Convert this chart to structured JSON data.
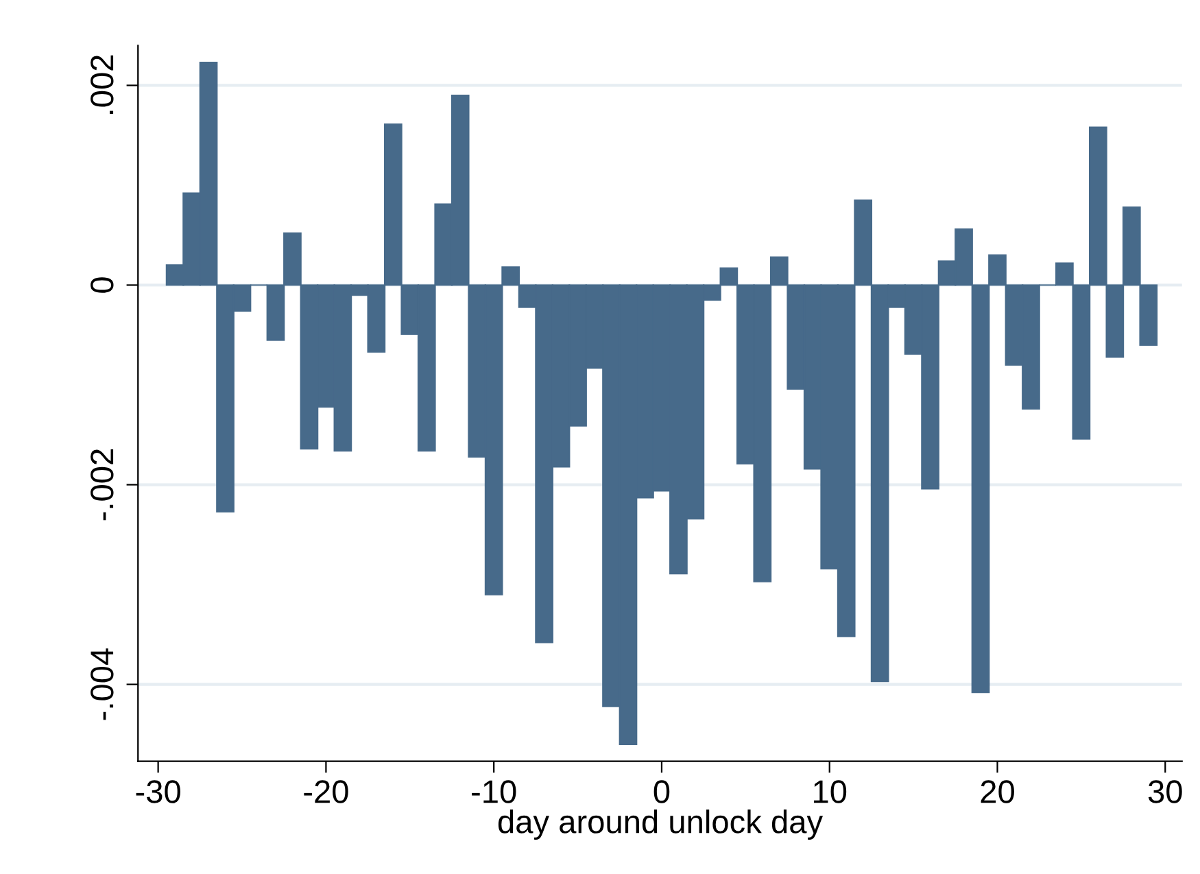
{
  "chart_data": {
    "type": "bar",
    "xlabel": "day around unlock day",
    "x": [
      -29,
      -28,
      -27,
      -26,
      -25,
      -24,
      -23,
      -22,
      -21,
      -20,
      -19,
      -18,
      -17,
      -16,
      -15,
      -14,
      -13,
      -12,
      -11,
      -10,
      -9,
      -8,
      -7,
      -6,
      -5,
      -4,
      -3,
      -2,
      -1,
      0,
      1,
      2,
      3,
      4,
      5,
      6,
      7,
      8,
      9,
      10,
      11,
      12,
      13,
      14,
      15,
      16,
      17,
      18,
      19,
      20,
      21,
      22,
      23,
      24,
      25,
      26,
      27,
      28,
      29
    ],
    "values": [
      0.0002,
      0.00092,
      0.00223,
      -0.00227,
      -0.00026,
      0,
      -0.00055,
      0.00052,
      -0.00164,
      -0.00122,
      -0.00166,
      -0.0001,
      -0.00067,
      0.00161,
      -0.00049,
      -0.00166,
      0.00081,
      0.0019,
      -0.00172,
      -0.0031,
      0.00018,
      -0.00022,
      -0.00358,
      -0.00182,
      -0.00141,
      -0.00083,
      -0.00422,
      -0.0046,
      -0.00213,
      -0.00206,
      -0.00289,
      -0.00234,
      -0.00015,
      0.00017,
      -0.00179,
      -0.00297,
      0.00028,
      -0.00104,
      -0.00184,
      -0.00284,
      -0.00352,
      0.00085,
      -0.00397,
      -0.00022,
      -0.00069,
      -0.00204,
      0.00024,
      0.00056,
      -0.00408,
      0.0003,
      -0.0008,
      -0.00124,
      0,
      0.00022,
      -0.00154,
      0.00158,
      -0.00072,
      0.00078,
      -0.0006
    ],
    "color": "#476a8a",
    "xlim": [
      -31.2,
      31.0
    ],
    "xticks": [
      -30,
      -20,
      -10,
      0,
      10,
      20,
      30
    ],
    "ylim": [
      -0.00477,
      0.0024
    ],
    "yticks": [
      {
        "value": -0.004,
        "label": "-.004"
      },
      {
        "value": -0.002,
        "label": "-.002"
      },
      {
        "value": 0,
        "label": "0"
      },
      {
        "value": 0.002,
        "label": ".002"
      }
    ],
    "grid": "y"
  }
}
